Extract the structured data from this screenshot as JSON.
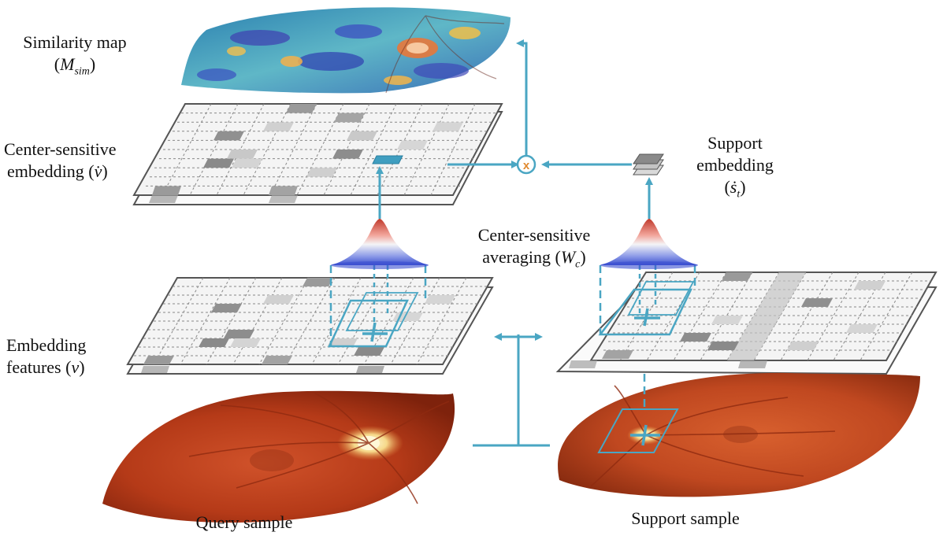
{
  "labels": {
    "similarity_map": "Similarity map",
    "m_sim_open": "(",
    "m_sim_sym": "M",
    "m_sim_sub": "sim",
    "m_sim_close": ")",
    "center_embedding_line1": "Center-sensitive",
    "center_embedding_line2": "embedding (",
    "center_embedding_sym": "v̇",
    "center_embedding_close": ")",
    "support_embedding_line1": "Support",
    "support_embedding_line2": "embedding",
    "support_sym_open": "(",
    "support_sym": "ṡ",
    "support_sym_sub": "t",
    "support_sym_close": ")",
    "averaging_line1": "Center-sensitive",
    "averaging_line2": "averaging (",
    "averaging_sym": "W",
    "averaging_sym_sub": "c",
    "averaging_close": ")",
    "embedding_features_line1": "Embedding",
    "embedding_features_line2": "features (",
    "embedding_features_sym": "v",
    "embedding_features_close": ")",
    "query_sample": "Query sample",
    "support_sample": "Support sample",
    "multiply_symbol": "x"
  },
  "colors": {
    "arrow": "#4aa6c3",
    "grid_line": "#555555",
    "cell_dark": "#8a8a8a",
    "cell_mid": "#b5b5b5",
    "cell_light": "#d3d3d3",
    "retina_base": "#c1401c",
    "retina_dark": "#8e2a10",
    "disc": "#f7e7a8"
  }
}
